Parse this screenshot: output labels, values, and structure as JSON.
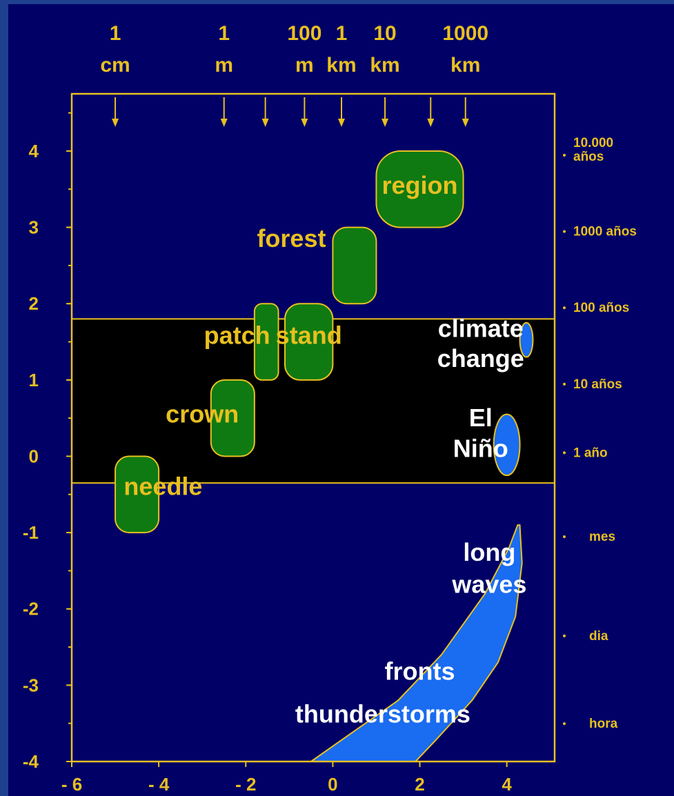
{
  "chart_data": {
    "type": "scatter",
    "x_axis": {
      "range": [
        -6,
        5.1
      ],
      "ticks": [
        "- 6",
        "- 4",
        "- 2",
        "0",
        "2",
        "4"
      ],
      "tick_values": [
        -6,
        -4,
        -2,
        0,
        2,
        4
      ]
    },
    "y_axis": {
      "range": [
        -4,
        4.75
      ],
      "ticks": [
        "4",
        "3",
        "2",
        "1",
        "0",
        "-1",
        "-2",
        "-3",
        "-4"
      ],
      "tick_values": [
        4,
        3,
        2,
        1,
        0,
        -1,
        -2,
        -3,
        -4
      ]
    },
    "top_scale": [
      {
        "line1": "1",
        "line2": "cm",
        "x": -5
      },
      {
        "line1": "1",
        "line2": "m",
        "x": -2.5
      },
      {
        "line1": "100",
        "line2": "m",
        "x": -0.65
      },
      {
        "line1": "1",
        "line2": "km",
        "x": 0.2
      },
      {
        "line1": "10",
        "line2": "km",
        "x": 1.2
      },
      {
        "line1": "1000",
        "line2": "km",
        "x": 3.05
      }
    ],
    "top_arrows_x": [
      -5,
      -2.5,
      -1.55,
      -0.65,
      0.2,
      1.2,
      2.25,
      3.05
    ],
    "right_scale": [
      {
        "line1": "10.000",
        "line2": "años",
        "y": 4
      },
      {
        "line1": "1000 años",
        "line2": "",
        "y": 3
      },
      {
        "line1": "100 años",
        "line2": "",
        "y": 2
      },
      {
        "line1": "10 años",
        "line2": "",
        "y": 1
      },
      {
        "line1": "1 año",
        "line2": "",
        "y": 0.1
      },
      {
        "line1": "mes",
        "line2": "",
        "y": -1
      },
      {
        "line1": "dia",
        "line2": "",
        "y": -2.3
      },
      {
        "line1": "hora",
        "line2": "",
        "y": -3.45
      }
    ],
    "band_y": [
      -0.35,
      1.8
    ],
    "colors": {
      "plot_bg": "#000066",
      "band": "#000000",
      "axis": "#e8c020",
      "label": "#e8c020",
      "forest_fill": "#0f7a12",
      "atmos_fill": "#1a6cf0",
      "atmos_label": "#ffffff"
    },
    "regions": [
      {
        "label": "needle",
        "group": "forest",
        "x": [
          -5,
          -4
        ],
        "y": [
          -1,
          0
        ]
      },
      {
        "label": "crown",
        "group": "forest",
        "x": [
          -2.8,
          -1.8
        ],
        "y": [
          0,
          1
        ]
      },
      {
        "label": "patch",
        "group": "forest",
        "x": [
          -1.8,
          -1.25
        ],
        "y": [
          1,
          2
        ]
      },
      {
        "label": "stand",
        "group": "forest",
        "x": [
          -1.1,
          0
        ],
        "y": [
          1,
          2
        ]
      },
      {
        "label": "forest",
        "group": "forest",
        "x": [
          0,
          1
        ],
        "y": [
          2,
          3
        ]
      },
      {
        "label": "region",
        "group": "forest",
        "x": [
          1,
          3
        ],
        "y": [
          3,
          4
        ]
      },
      {
        "label": "climate change",
        "group": "atmosphere",
        "x": [
          4.3,
          4.6
        ],
        "y": [
          1.3,
          1.75
        ]
      },
      {
        "label": "El Niño",
        "group": "atmosphere",
        "x": [
          3.7,
          4.3
        ],
        "y": [
          -0.25,
          0.55
        ]
      }
    ],
    "atmosphere_band": {
      "labels": [
        "long waves",
        "fronts",
        "thunderstorms"
      ],
      "upper_edge": [
        [
          -0.5,
          -4
        ],
        [
          0.5,
          -3.6
        ],
        [
          1.5,
          -3.2
        ],
        [
          2.5,
          -2.6
        ],
        [
          3.5,
          -1.8
        ],
        [
          4.05,
          -1.2
        ],
        [
          4.25,
          -0.9
        ]
      ],
      "lower_edge": [
        [
          4.3,
          -0.9
        ],
        [
          4.35,
          -1.4
        ],
        [
          4.2,
          -2.1
        ],
        [
          3.8,
          -2.7
        ],
        [
          3.2,
          -3.2
        ],
        [
          2.4,
          -3.7
        ],
        [
          1.9,
          -4
        ]
      ]
    }
  }
}
